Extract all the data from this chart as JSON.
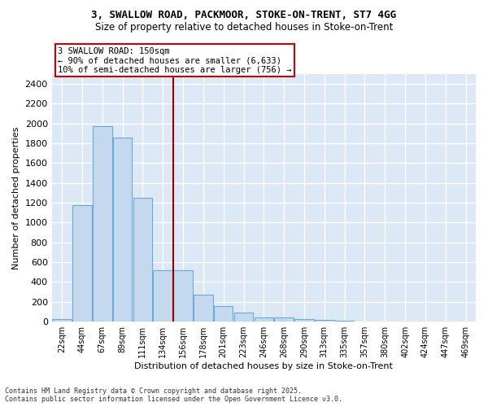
{
  "title_line1": "3, SWALLOW ROAD, PACKMOOR, STOKE-ON-TRENT, ST7 4GG",
  "title_line2": "Size of property relative to detached houses in Stoke-on-Trent",
  "xlabel": "Distribution of detached houses by size in Stoke-on-Trent",
  "ylabel": "Number of detached properties",
  "bar_labels": [
    "22sqm",
    "44sqm",
    "67sqm",
    "89sqm",
    "111sqm",
    "134sqm",
    "156sqm",
    "178sqm",
    "201sqm",
    "223sqm",
    "246sqm",
    "268sqm",
    "290sqm",
    "313sqm",
    "335sqm",
    "357sqm",
    "380sqm",
    "402sqm",
    "424sqm",
    "447sqm",
    "469sqm"
  ],
  "bar_values": [
    25,
    1175,
    1975,
    1860,
    1250,
    520,
    520,
    275,
    155,
    88,
    45,
    40,
    30,
    15,
    8,
    5,
    3,
    2,
    1,
    1,
    1
  ],
  "bar_color": "#c5d9ee",
  "bar_edgecolor": "#6aaad4",
  "vline_x_index": 5.5,
  "vline_color": "#990000",
  "annotation_text": "3 SWALLOW ROAD: 150sqm\n← 90% of detached houses are smaller (6,633)\n10% of semi-detached houses are larger (756) →",
  "annotation_box_color": "#ffffff",
  "annotation_box_edgecolor": "#cc0000",
  "ylim": [
    0,
    2500
  ],
  "yticks": [
    0,
    200,
    400,
    600,
    800,
    1000,
    1200,
    1400,
    1600,
    1800,
    2000,
    2200,
    2400
  ],
  "background_color": "#dce8f5",
  "plot_bg_color": "#dce8f5",
  "fig_bg_color": "#ffffff",
  "grid_color": "#ffffff",
  "footnote_line1": "Contains HM Land Registry data © Crown copyright and database right 2025.",
  "footnote_line2": "Contains public sector information licensed under the Open Government Licence v3.0."
}
